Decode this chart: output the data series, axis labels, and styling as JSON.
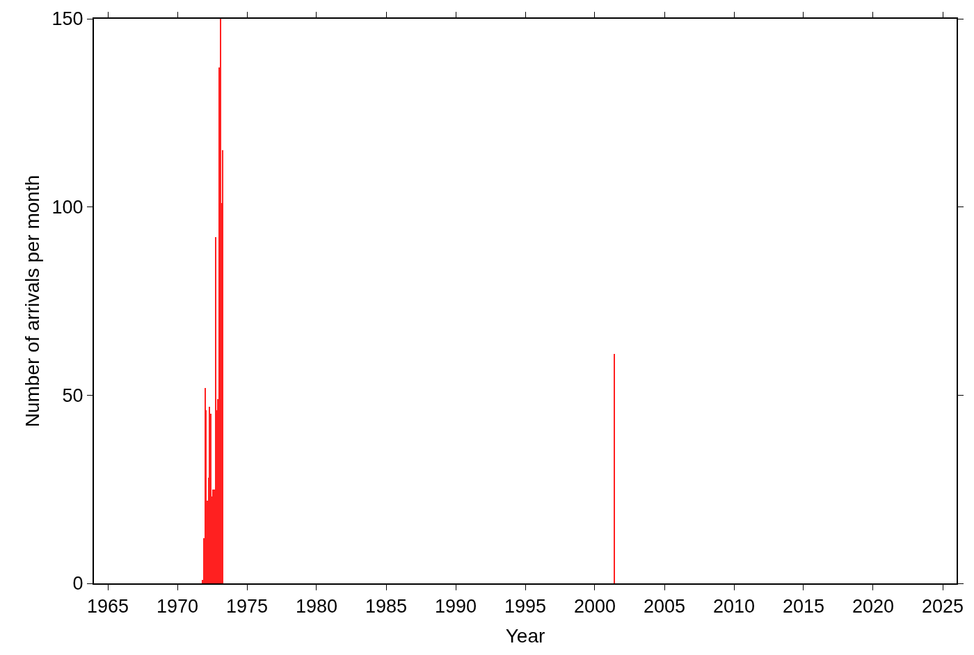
{
  "chart_data": {
    "type": "bar",
    "xlabel": "Year",
    "ylabel": "Number of arrivals per month",
    "x": [
      "1971-11",
      "1971-12",
      "1972-01",
      "1972-02",
      "1972-03",
      "1972-04",
      "1972-05",
      "1972-06",
      "1972-07",
      "1972-08",
      "1972-09",
      "1972-10",
      "1972-11",
      "1972-12",
      "1973-01",
      "1973-02",
      "1973-03",
      "1973-04",
      "2001-06"
    ],
    "values": [
      1,
      12,
      52,
      46,
      22,
      28,
      47,
      45,
      23,
      25,
      25,
      92,
      46,
      49,
      137,
      150,
      101,
      115,
      61
    ],
    "color": "#ff2020",
    "xlim": [
      "1964-01-01",
      "2026-01-01"
    ],
    "xticks": [
      "1965",
      "1970",
      "1975",
      "1980",
      "1985",
      "1990",
      "1995",
      "2000",
      "2005",
      "2010",
      "2015",
      "2020",
      "2025"
    ],
    "ylim": [
      0,
      150
    ],
    "yticks": [
      0,
      50,
      100,
      150
    ]
  }
}
